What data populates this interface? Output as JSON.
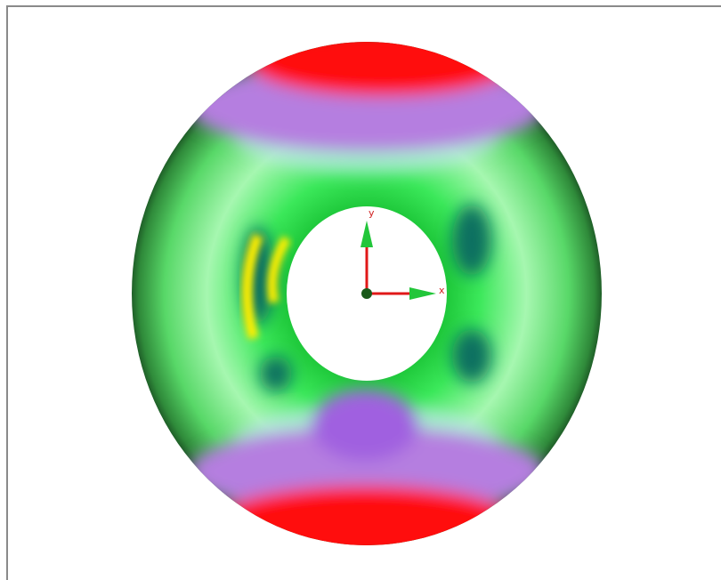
{
  "axes": {
    "x_label": "x",
    "y_label": "y"
  }
}
